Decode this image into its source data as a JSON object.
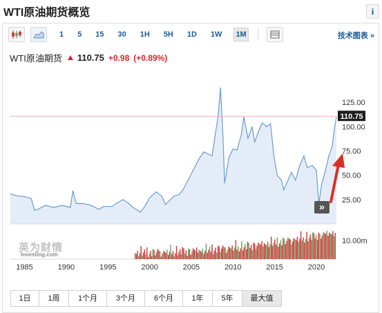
{
  "header": {
    "title": "WTI原油期货概览",
    "info_label": "i"
  },
  "toolbar": {
    "intervals": [
      "1",
      "5",
      "15",
      "30",
      "1H",
      "5H",
      "1D",
      "1W",
      "1M"
    ],
    "active_interval": "1M",
    "tech_chart_link": "技术图表 »"
  },
  "quote": {
    "name": "WTI原油期货",
    "price": "110.75",
    "change": "+0.98",
    "change_pct": "(+0.89%)",
    "direction": "up"
  },
  "watermark": {
    "logo_text": "英为财情",
    "sub_text": "Investing.com"
  },
  "expand_button": "»",
  "periods": [
    "1日",
    "1周",
    "1个月",
    "3个月",
    "6个月",
    "1年",
    "5年",
    "最大值"
  ],
  "active_period": "最大值",
  "colors": {
    "line": "#6b9bcf",
    "area": "#e4edf7",
    "up_bar": "#d23f3f",
    "down_bar": "#6fa564",
    "price_tag": "#1e1e1e",
    "price_line": "#f0b0b0",
    "arrow": "#d93025"
  },
  "chart_data": {
    "type": "area",
    "x_ticks": [
      "1985",
      "1990",
      "1995",
      "2000",
      "2005",
      "2010",
      "2015",
      "2020"
    ],
    "y_ticks": [
      "125.00",
      "100.00",
      "75.00",
      "50.00",
      "25.00"
    ],
    "ylim": [
      0,
      150
    ],
    "xlim": [
      1983.3,
      2022.4
    ],
    "volume_tick": "10.00m",
    "current_price_label": "110.75",
    "series": [
      {
        "x": [
          1983.3,
          1984.0,
          1985.0,
          1985.8,
          1986.2,
          1986.6,
          1987.5,
          1988.5,
          1989.5,
          1990.5,
          1990.8,
          1991.2,
          1992.0,
          1993.0,
          1993.9,
          1994.5,
          1995.5,
          1996.0,
          1996.8,
          1997.5,
          1998.0,
          1998.9,
          1999.5,
          2000.0,
          2000.8,
          2001.5,
          2001.9,
          2002.5,
          2003.0,
          2003.5,
          2004.0,
          2004.8,
          2005.5,
          2006.0,
          2006.5,
          2007.0,
          2007.5,
          2007.9,
          2008.2,
          2008.5,
          2008.8,
          2009.0,
          2009.5,
          2010.0,
          2010.5,
          2011.0,
          2011.3,
          2011.8,
          2012.3,
          2012.6,
          2013.0,
          2013.5,
          2014.0,
          2014.5,
          2014.9,
          2015.3,
          2015.8,
          2016.1,
          2016.5,
          2017.0,
          2017.5,
          2018.0,
          2018.5,
          2018.9,
          2019.5,
          2020.0,
          2020.3,
          2020.6,
          2021.0,
          2021.5,
          2021.9,
          2022.1,
          2022.4
        ],
        "y": [
          31,
          29,
          28,
          26,
          14,
          15,
          19,
          17,
          19,
          17,
          34,
          21,
          21,
          19,
          15,
          18,
          18,
          21,
          25,
          21,
          17,
          12,
          19,
          27,
          33,
          28,
          20,
          25,
          29,
          30,
          35,
          48,
          60,
          68,
          74,
          72,
          70,
          94,
          110,
          140,
          90,
          42,
          68,
          77,
          76,
          92,
          110,
          88,
          100,
          84,
          94,
          104,
          100,
          103,
          70,
          50,
          45,
          35,
          43,
          53,
          45,
          60,
          70,
          58,
          60,
          55,
          20,
          40,
          52,
          70,
          80,
          95,
          110
        ]
      }
    ]
  }
}
